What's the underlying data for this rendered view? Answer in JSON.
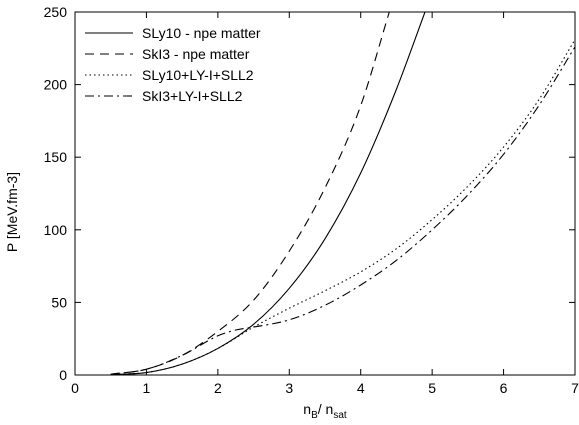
{
  "chart_data": {
    "type": "line",
    "title": "",
    "xlabel": {
      "main": "n",
      "main_sub": "B",
      "sep": "/ n",
      "sep_sub": "sat"
    },
    "ylabel": "P [MeV.fm-3]",
    "xlim": [
      0,
      7
    ],
    "ylim": [
      0,
      250
    ],
    "xticks": [
      "0",
      "1",
      "2",
      "3",
      "4",
      "5",
      "6",
      "7"
    ],
    "yticks": [
      "0",
      "50",
      "100",
      "150",
      "200",
      "250"
    ],
    "grid": false,
    "legend_position": "top-left",
    "series": [
      {
        "name": "SLy10 - npe matter",
        "style": "solid",
        "x": [
          0.5,
          1.0,
          1.5,
          2.0,
          2.5,
          3.0,
          3.5,
          4.0,
          4.5,
          4.9
        ],
        "y": [
          0.3,
          1.7,
          7.5,
          18.3,
          34.9,
          59.7,
          93.8,
          139.1,
          196.8,
          250
        ]
      },
      {
        "name": "SkI3 - npe matter",
        "style": "dashed",
        "x": [
          0.5,
          1.0,
          1.5,
          2.0,
          2.5,
          3.0,
          3.5,
          4.0,
          4.4
        ],
        "y": [
          0.5,
          4.0,
          13.5,
          30.0,
          51.5,
          85.3,
          128.8,
          185.5,
          250
        ]
      },
      {
        "name": "SLy10+LY-I+SLL2",
        "style": "dotted",
        "x": [
          0.5,
          1.0,
          1.5,
          2.0,
          2.5,
          3.0,
          3.5,
          4.0,
          4.5,
          5.0,
          5.5,
          6.0,
          6.5,
          7.0
        ],
        "y": [
          0.3,
          1.7,
          7.5,
          18.3,
          33.0,
          46.0,
          58.0,
          71.0,
          87.0,
          107.0,
          130.0,
          157.0,
          190.0,
          231.0
        ]
      },
      {
        "name": "SkI3+LY-I+SLL2",
        "style": "dashdot",
        "x": [
          0.5,
          1.0,
          1.5,
          2.0,
          2.25,
          2.5,
          3.0,
          3.5,
          4.0,
          4.5,
          5.0,
          5.5,
          6.0,
          6.5,
          7.0
        ],
        "y": [
          0.5,
          4.0,
          13.5,
          27.0,
          31.0,
          33.0,
          38.0,
          48.0,
          62.0,
          79.0,
          100.0,
          124.0,
          152.0,
          186.0,
          226.0
        ]
      }
    ]
  }
}
